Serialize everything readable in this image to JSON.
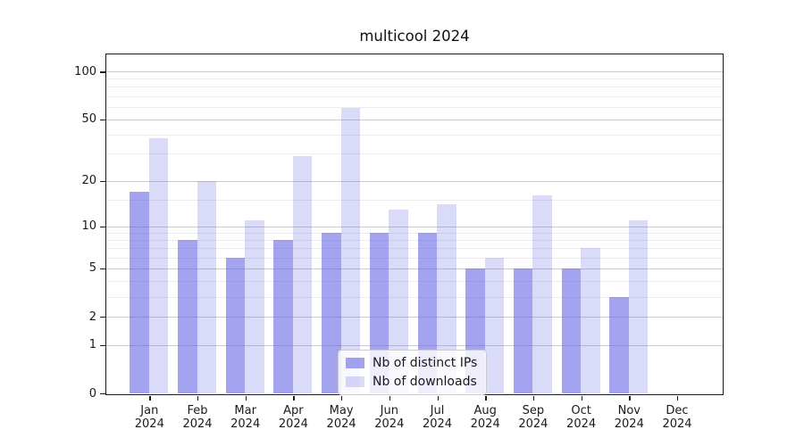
{
  "title": "multicool 2024",
  "chart_data": {
    "type": "bar",
    "title": "multicool 2024",
    "y_scale": "log1p",
    "ylim": [
      0,
      128
    ],
    "grid": "on",
    "legend_position": "lower center",
    "year": "2024",
    "months": [
      "Jan",
      "Feb",
      "Mar",
      "Apr",
      "May",
      "Jun",
      "Jul",
      "Aug",
      "Sep",
      "Oct",
      "Nov",
      "Dec"
    ],
    "categories": [
      "Jan 2024",
      "Feb 2024",
      "Mar 2024",
      "Apr 2024",
      "May 2024",
      "Jun 2024",
      "Jul 2024",
      "Aug 2024",
      "Sep 2024",
      "Oct 2024",
      "Nov 2024",
      "Dec 2024"
    ],
    "series": [
      {
        "name": "Nb of distinct IPs",
        "color": "rgba(102,102,230,0.60)",
        "values": [
          17,
          8,
          6,
          8,
          9,
          9,
          9,
          5,
          5,
          5,
          3,
          0
        ]
      },
      {
        "name": "Nb of downloads",
        "color": "rgba(102,102,230,0.24)",
        "values": [
          38,
          20,
          11,
          29,
          59,
          13,
          14,
          6,
          16,
          7,
          11,
          0
        ]
      }
    ],
    "y_major_ticks": [
      100,
      50,
      20,
      10,
      5,
      2,
      1,
      0
    ],
    "y_minor_gridlines": [
      3,
      4,
      6,
      7,
      8,
      9,
      15,
      30,
      40,
      60,
      70,
      80,
      90
    ]
  },
  "colors": {
    "spine": "#1a1a1a",
    "grid_major": "#cbcbcb",
    "grid_minor": "#ececec",
    "bar_distinct_ips": "rgba(102,102,230,0.60)",
    "bar_downloads": "rgba(102,102,230,0.24)"
  }
}
